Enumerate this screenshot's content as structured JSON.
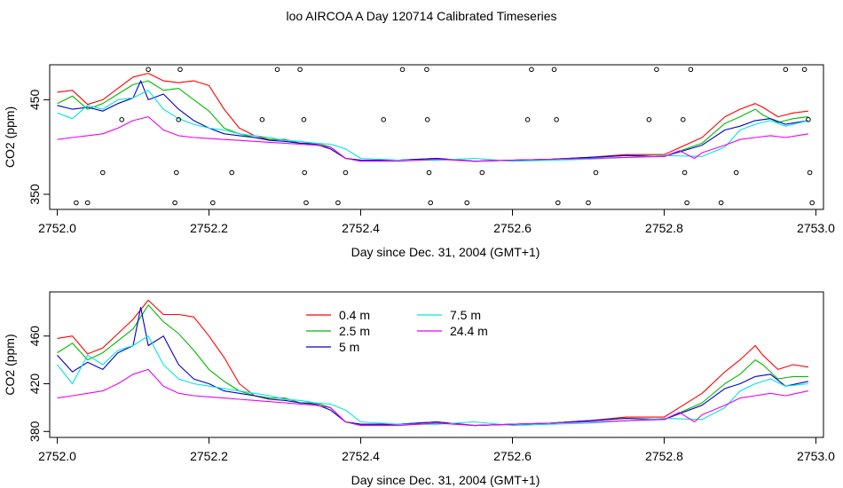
{
  "title": "loo AIRCOA A  Day 120714  Calibrated Timeseries",
  "colors": {
    "0.4 m": "#ff0000",
    "2.5 m": "#00bb00",
    "5 m": "#0000cc",
    "7.5 m": "#00e5e5",
    "24.4 m": "#ee00ee",
    "markers": "#000000"
  },
  "chart_data": [
    {
      "type": "line",
      "title": "",
      "xlabel": "Day since Dec. 31, 2004 (GMT+1)",
      "ylabel": "CO2 (ppm)",
      "xlim": [
        2751.99,
        2753.01
      ],
      "ylim": [
        334,
        487
      ],
      "xticks": [
        "2752.0",
        "2752.2",
        "2752.4",
        "2752.6",
        "2752.8",
        "2753.0"
      ],
      "yticks": [
        "350",
        "450"
      ],
      "legend": "none",
      "series": [
        {
          "key": "0.4 m",
          "x": [
            2752.0,
            2752.02,
            2752.04,
            2752.06,
            2752.08,
            2752.1,
            2752.12,
            2752.14,
            2752.16,
            2752.18,
            2752.2,
            2752.22,
            2752.24,
            2752.26,
            2752.28,
            2752.3,
            2752.32,
            2752.34,
            2752.36,
            2752.38,
            2752.4,
            2752.45,
            2752.5,
            2752.55,
            2752.6,
            2752.65,
            2752.7,
            2752.75,
            2752.8,
            2752.85,
            2752.88,
            2752.9,
            2752.92,
            2752.93,
            2752.95,
            2752.97,
            2752.99
          ],
          "y": [
            458,
            460,
            445,
            450,
            462,
            474,
            478,
            470,
            468,
            470,
            465,
            440,
            420,
            412,
            408,
            408,
            404,
            404,
            400,
            388,
            386,
            386,
            388,
            385,
            386,
            387,
            389,
            392,
            392,
            410,
            432,
            440,
            446,
            442,
            432,
            436,
            438
          ]
        },
        {
          "key": "2.5 m",
          "x": [
            2752.0,
            2752.02,
            2752.04,
            2752.06,
            2752.08,
            2752.1,
            2752.12,
            2752.14,
            2752.16,
            2752.18,
            2752.2,
            2752.22,
            2752.24,
            2752.26,
            2752.28,
            2752.3,
            2752.32,
            2752.34,
            2752.36,
            2752.38,
            2752.4,
            2752.45,
            2752.5,
            2752.55,
            2752.6,
            2752.65,
            2752.7,
            2752.75,
            2752.8,
            2752.85,
            2752.88,
            2752.9,
            2752.92,
            2752.93,
            2752.95,
            2752.97,
            2752.99
          ],
          "y": [
            446,
            454,
            440,
            446,
            456,
            466,
            470,
            460,
            462,
            450,
            438,
            420,
            414,
            410,
            408,
            408,
            404,
            404,
            400,
            388,
            386,
            386,
            388,
            385,
            386,
            387,
            389,
            391,
            390,
            404,
            425,
            432,
            440,
            434,
            426,
            430,
            432
          ]
        },
        {
          "key": "5 m",
          "x": [
            2752.0,
            2752.02,
            2752.04,
            2752.06,
            2752.08,
            2752.1,
            2752.11,
            2752.12,
            2752.14,
            2752.16,
            2752.18,
            2752.2,
            2752.22,
            2752.24,
            2752.26,
            2752.28,
            2752.3,
            2752.32,
            2752.34,
            2752.36,
            2752.38,
            2752.4,
            2752.45,
            2752.5,
            2752.55,
            2752.6,
            2752.65,
            2752.7,
            2752.75,
            2752.8,
            2752.85,
            2752.88,
            2752.9,
            2752.92,
            2752.94,
            2752.96,
            2752.99
          ],
          "y": [
            444,
            440,
            442,
            438,
            446,
            452,
            470,
            450,
            456,
            440,
            428,
            420,
            414,
            412,
            410,
            407,
            406,
            404,
            403,
            398,
            388,
            386,
            386,
            388,
            385,
            386,
            387,
            389,
            391,
            390,
            402,
            418,
            422,
            428,
            430,
            424,
            428
          ]
        },
        {
          "key": "7.5 m",
          "x": [
            2752.0,
            2752.02,
            2752.04,
            2752.06,
            2752.08,
            2752.1,
            2752.12,
            2752.14,
            2752.16,
            2752.18,
            2752.2,
            2752.22,
            2752.24,
            2752.26,
            2752.28,
            2752.3,
            2752.32,
            2752.34,
            2752.36,
            2752.38,
            2752.4,
            2752.45,
            2752.5,
            2752.55,
            2752.6,
            2752.65,
            2752.7,
            2752.75,
            2752.8,
            2752.85,
            2752.88,
            2752.9,
            2752.92,
            2752.94,
            2752.96,
            2752.99
          ],
          "y": [
            436,
            430,
            444,
            440,
            450,
            452,
            460,
            440,
            430,
            424,
            420,
            418,
            414,
            412,
            410,
            407,
            406,
            404,
            403,
            398,
            388,
            386,
            386,
            388,
            385,
            386,
            387,
            389,
            391,
            390,
            400,
            418,
            424,
            428,
            422,
            428
          ]
        },
        {
          "key": "24.4 m",
          "x": [
            2752.0,
            2752.02,
            2752.04,
            2752.06,
            2752.08,
            2752.1,
            2752.12,
            2752.14,
            2752.16,
            2752.18,
            2752.2,
            2752.22,
            2752.24,
            2752.26,
            2752.28,
            2752.3,
            2752.32,
            2752.34,
            2752.36,
            2752.38,
            2752.4,
            2752.45,
            2752.5,
            2752.55,
            2752.6,
            2752.65,
            2752.7,
            2752.75,
            2752.8,
            2752.82,
            2752.84,
            2752.85,
            2752.88,
            2752.9,
            2752.92,
            2752.94,
            2752.96,
            2752.99
          ],
          "y": [
            408,
            410,
            412,
            414,
            420,
            428,
            432,
            418,
            412,
            410,
            409,
            408,
            407,
            406,
            405,
            404,
            403,
            402,
            400,
            388,
            385,
            385,
            387,
            385,
            386,
            387,
            388,
            389,
            390,
            396,
            388,
            394,
            402,
            408,
            410,
            412,
            410,
            414
          ]
        }
      ],
      "markers": {
        "x": [
          2752.025,
          2752.04,
          2752.06,
          2752.085,
          2752.12,
          2752.155,
          2752.157,
          2752.16,
          2752.162,
          2752.205,
          2752.23,
          2752.27,
          2752.29,
          2752.32,
          2752.325,
          2752.326,
          2752.328,
          2752.37,
          2752.38,
          2752.43,
          2752.455,
          2752.487,
          2752.488,
          2752.49,
          2752.492,
          2752.54,
          2752.56,
          2752.62,
          2752.625,
          2752.655,
          2752.658,
          2752.66,
          2752.7,
          2752.71,
          2752.78,
          2752.79,
          2752.825,
          2752.827,
          2752.83,
          2752.835,
          2752.875,
          2752.895,
          2752.96,
          2752.985,
          2752.99,
          2752.992,
          2752.995
        ],
        "y": [
          341,
          341,
          373,
          429,
          482,
          341,
          373,
          429,
          482,
          341,
          373,
          429,
          482,
          482,
          429,
          373,
          341,
          341,
          373,
          429,
          482,
          482,
          429,
          373,
          341,
          341,
          373,
          429,
          482,
          482,
          429,
          341,
          341,
          373,
          429,
          482,
          429,
          373,
          341,
          482,
          341,
          373,
          482,
          482,
          429,
          373,
          341
        ]
      }
    },
    {
      "type": "line",
      "title": "",
      "xlabel": "Day since Dec. 31, 2004 (GMT+1)",
      "ylabel": "CO2 (ppm)",
      "xlim": [
        2751.99,
        2753.01
      ],
      "ylim": [
        375,
        497
      ],
      "xticks": [
        "2752.0",
        "2752.2",
        "2752.4",
        "2752.6",
        "2752.8",
        "2753.0"
      ],
      "yticks": [
        "380",
        "420",
        "460"
      ],
      "legend": "top-center",
      "series": [
        {
          "key": "0.4 m",
          "name": "0.4 m",
          "x": [
            2752.0,
            2752.02,
            2752.04,
            2752.06,
            2752.08,
            2752.1,
            2752.12,
            2752.14,
            2752.16,
            2752.18,
            2752.2,
            2752.22,
            2752.24,
            2752.26,
            2752.28,
            2752.3,
            2752.32,
            2752.34,
            2752.36,
            2752.38,
            2752.4,
            2752.45,
            2752.5,
            2752.55,
            2752.6,
            2752.65,
            2752.7,
            2752.75,
            2752.8,
            2752.85,
            2752.88,
            2752.9,
            2752.92,
            2752.93,
            2752.95,
            2752.97,
            2752.99
          ],
          "y": [
            458,
            460,
            445,
            450,
            462,
            474,
            490,
            478,
            478,
            476,
            460,
            442,
            420,
            410,
            408,
            408,
            404,
            404,
            400,
            388,
            386,
            386,
            388,
            385,
            386,
            387,
            389,
            392,
            392,
            412,
            430,
            440,
            452,
            444,
            432,
            436,
            434
          ]
        },
        {
          "key": "2.5 m",
          "name": "2.5 m",
          "x": [
            2752.0,
            2752.02,
            2752.04,
            2752.06,
            2752.08,
            2752.1,
            2752.12,
            2752.14,
            2752.16,
            2752.18,
            2752.2,
            2752.22,
            2752.24,
            2752.26,
            2752.28,
            2752.3,
            2752.32,
            2752.34,
            2752.36,
            2752.38,
            2752.4,
            2752.45,
            2752.5,
            2752.55,
            2752.6,
            2752.65,
            2752.7,
            2752.75,
            2752.8,
            2752.85,
            2752.88,
            2752.9,
            2752.92,
            2752.93,
            2752.95,
            2752.97,
            2752.99
          ],
          "y": [
            446,
            454,
            440,
            446,
            456,
            466,
            486,
            472,
            462,
            448,
            432,
            422,
            414,
            410,
            408,
            408,
            404,
            404,
            400,
            388,
            386,
            386,
            388,
            385,
            386,
            387,
            389,
            391,
            390,
            404,
            420,
            428,
            440,
            436,
            424,
            426,
            426
          ]
        },
        {
          "key": "5 m",
          "name": "5 m",
          "x": [
            2752.0,
            2752.02,
            2752.04,
            2752.06,
            2752.08,
            2752.1,
            2752.11,
            2752.12,
            2752.14,
            2752.16,
            2752.18,
            2752.2,
            2752.22,
            2752.24,
            2752.26,
            2752.28,
            2752.3,
            2752.32,
            2752.34,
            2752.36,
            2752.38,
            2752.4,
            2752.45,
            2752.5,
            2752.55,
            2752.6,
            2752.65,
            2752.7,
            2752.75,
            2752.8,
            2752.85,
            2752.88,
            2752.9,
            2752.92,
            2752.94,
            2752.96,
            2752.99
          ],
          "y": [
            444,
            430,
            438,
            432,
            446,
            452,
            484,
            452,
            460,
            436,
            424,
            420,
            414,
            412,
            410,
            407,
            406,
            404,
            403,
            398,
            388,
            386,
            386,
            388,
            385,
            386,
            387,
            389,
            391,
            390,
            402,
            416,
            420,
            426,
            428,
            418,
            422
          ]
        },
        {
          "key": "7.5 m",
          "name": "7.5 m",
          "x": [
            2752.0,
            2752.02,
            2752.04,
            2752.06,
            2752.08,
            2752.1,
            2752.12,
            2752.14,
            2752.16,
            2752.18,
            2752.2,
            2752.22,
            2752.24,
            2752.26,
            2752.28,
            2752.3,
            2752.32,
            2752.34,
            2752.36,
            2752.38,
            2752.4,
            2752.45,
            2752.5,
            2752.55,
            2752.6,
            2752.65,
            2752.7,
            2752.75,
            2752.8,
            2752.85,
            2752.88,
            2752.9,
            2752.92,
            2752.94,
            2752.96,
            2752.99
          ],
          "y": [
            436,
            420,
            444,
            436,
            448,
            452,
            460,
            436,
            424,
            420,
            418,
            416,
            414,
            412,
            410,
            407,
            406,
            404,
            403,
            398,
            388,
            386,
            386,
            388,
            385,
            386,
            387,
            389,
            391,
            390,
            400,
            414,
            420,
            424,
            418,
            420
          ]
        },
        {
          "key": "24.4 m",
          "name": "24.4 m",
          "x": [
            2752.0,
            2752.02,
            2752.04,
            2752.06,
            2752.08,
            2752.1,
            2752.12,
            2752.14,
            2752.16,
            2752.18,
            2752.2,
            2752.22,
            2752.24,
            2752.26,
            2752.28,
            2752.3,
            2752.32,
            2752.34,
            2752.36,
            2752.38,
            2752.4,
            2752.45,
            2752.5,
            2752.55,
            2752.6,
            2752.65,
            2752.7,
            2752.75,
            2752.8,
            2752.82,
            2752.84,
            2752.85,
            2752.88,
            2752.9,
            2752.92,
            2752.94,
            2752.96,
            2752.99
          ],
          "y": [
            408,
            410,
            412,
            414,
            420,
            428,
            432,
            418,
            412,
            410,
            409,
            408,
            407,
            406,
            405,
            404,
            403,
            402,
            400,
            388,
            385,
            385,
            387,
            385,
            386,
            387,
            388,
            389,
            390,
            396,
            388,
            394,
            402,
            408,
            410,
            412,
            410,
            414
          ]
        }
      ]
    }
  ]
}
